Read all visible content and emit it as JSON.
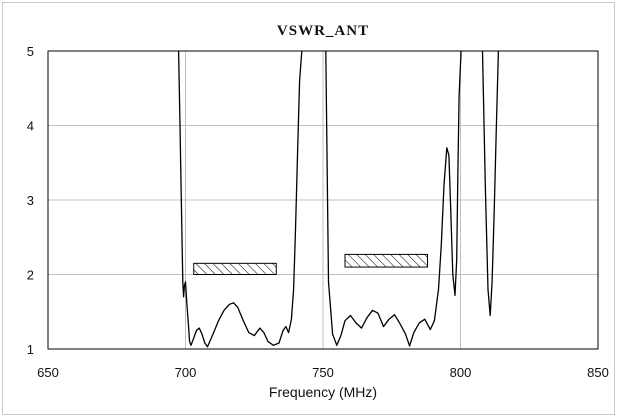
{
  "chart_data": {
    "type": "line",
    "title": "VSWR_ANT",
    "xlabel": "Frequency (MHz)",
    "ylabel": "",
    "xlim": [
      650,
      850
    ],
    "ylim": [
      1,
      5
    ],
    "x_ticks": [
      650,
      700,
      750,
      800,
      850
    ],
    "y_ticks": [
      1,
      2,
      3,
      4,
      5
    ],
    "grid": true,
    "legend": "none",
    "colors": {
      "line": "#000000",
      "grid": "#c0c0c0",
      "frame": "#000000",
      "hatch": "#000000"
    },
    "series": [
      {
        "x": [
          697.5,
          698.0,
          698.6,
          699.0,
          699.3,
          699.6,
          700.0,
          700.5,
          701.0,
          701.5,
          702.0,
          703.0,
          704.0,
          705.0,
          706.0,
          707.0,
          708.0,
          710.0,
          712.0,
          714.0,
          716.0,
          717.5,
          719.0,
          721.0,
          723.0,
          725.0,
          727.0,
          728.5,
          730.0,
          732.0,
          734.0,
          735.5,
          736.5,
          737.5,
          738.5,
          739.3,
          740.0,
          740.8,
          741.5,
          742.3,
          751.0,
          752.0,
          753.5,
          755.0,
          756.5,
          758.0,
          760.0,
          762.0,
          764.0,
          766.0,
          768.0,
          770.0,
          772.0,
          774.0,
          776.0,
          778.0,
          780.0,
          781.5,
          783.0,
          785.0,
          787.0,
          789.0,
          790.5,
          792.0,
          793.0,
          794.0,
          795.0,
          795.8,
          796.5,
          797.2,
          798.0,
          798.6,
          799.0,
          799.5,
          800.2,
          808.0,
          809.0,
          810.0,
          810.8,
          811.5,
          812.2,
          813.0,
          813.8
        ],
        "y": [
          5.0,
          4.0,
          2.7,
          1.9,
          1.7,
          1.85,
          1.9,
          1.6,
          1.35,
          1.1,
          1.05,
          1.15,
          1.25,
          1.28,
          1.2,
          1.08,
          1.03,
          1.2,
          1.38,
          1.52,
          1.6,
          1.62,
          1.56,
          1.38,
          1.22,
          1.18,
          1.28,
          1.22,
          1.1,
          1.05,
          1.08,
          1.25,
          1.3,
          1.22,
          1.4,
          1.8,
          2.6,
          3.7,
          4.6,
          5.0,
          5.0,
          1.9,
          1.2,
          1.05,
          1.18,
          1.38,
          1.45,
          1.35,
          1.28,
          1.42,
          1.52,
          1.48,
          1.3,
          1.4,
          1.46,
          1.34,
          1.2,
          1.04,
          1.22,
          1.35,
          1.4,
          1.26,
          1.38,
          1.8,
          2.4,
          3.2,
          3.7,
          3.6,
          2.8,
          2.0,
          1.72,
          2.2,
          3.3,
          4.4,
          5.0,
          5.0,
          3.2,
          1.8,
          1.45,
          1.9,
          2.8,
          3.9,
          5.0
        ]
      }
    ],
    "hatched_boxes": [
      {
        "x": [
          703,
          733
        ],
        "y": [
          2.0,
          2.15
        ]
      },
      {
        "x": [
          758,
          788
        ],
        "y": [
          2.1,
          2.27
        ]
      }
    ]
  }
}
